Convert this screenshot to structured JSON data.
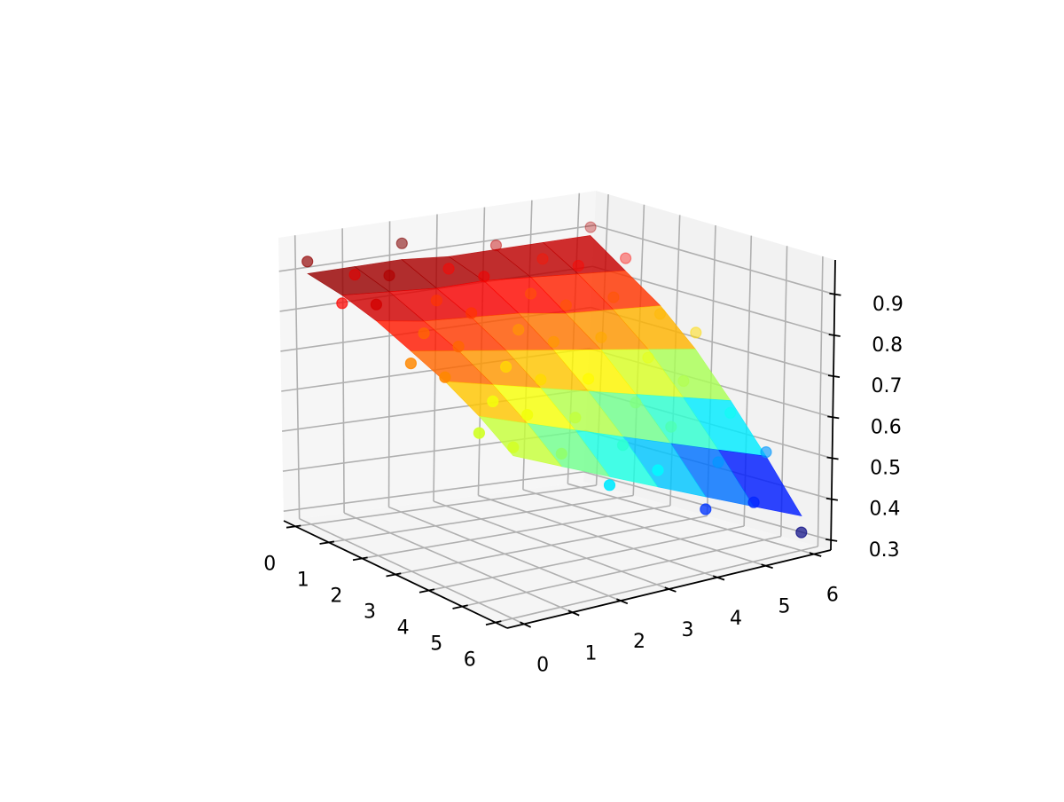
{
  "chart_data": {
    "type": "surface+scatter3d",
    "title": "",
    "xlabel": "",
    "ylabel": "",
    "zlabel": "",
    "colormap": "jet",
    "xlim": [
      -0.35,
      6.35
    ],
    "ylim": [
      -0.35,
      6.35
    ],
    "zlim": [
      0.276,
      0.984
    ],
    "grid": true,
    "x_ticks": [
      "0",
      "1",
      "2",
      "3",
      "4",
      "5",
      "6"
    ],
    "y_ticks": [
      "0",
      "1",
      "2",
      "3",
      "4",
      "5",
      "6"
    ],
    "z_ticks": [
      "0.3",
      "0.4",
      "0.5",
      "0.6",
      "0.7",
      "0.8",
      "0.9"
    ],
    "grid_x": [
      0,
      1,
      2,
      3,
      4,
      5,
      6
    ],
    "grid_y": [
      0,
      1,
      2,
      3,
      4,
      5,
      6
    ],
    "surface_z": [
      [
        0.9,
        0.9,
        0.9,
        0.89,
        0.89,
        0.89,
        0.89
      ],
      [
        0.88,
        0.87,
        0.86,
        0.86,
        0.85,
        0.84,
        0.83
      ],
      [
        0.85,
        0.83,
        0.82,
        0.81,
        0.79,
        0.78,
        0.77
      ],
      [
        0.81,
        0.79,
        0.77,
        0.75,
        0.73,
        0.71,
        0.69
      ],
      [
        0.77,
        0.74,
        0.71,
        0.68,
        0.65,
        0.62,
        0.59
      ],
      [
        0.72,
        0.68,
        0.64,
        0.6,
        0.56,
        0.52,
        0.48
      ],
      [
        0.66,
        0.61,
        0.56,
        0.51,
        0.46,
        0.41,
        0.36
      ]
    ],
    "scatter_z": [
      [
        0.93,
        0.88,
        0.94,
        0.86,
        0.9,
        0.85,
        0.91
      ],
      [
        0.86,
        0.91,
        0.83,
        0.87,
        0.81,
        0.86,
        0.86
      ],
      [
        0.89,
        0.8,
        0.83,
        0.77,
        0.81,
        0.81,
        0.75
      ],
      [
        0.78,
        0.8,
        0.73,
        0.77,
        0.76,
        0.69,
        0.73
      ],
      [
        0.78,
        0.7,
        0.73,
        0.71,
        0.63,
        0.66,
        0.56
      ],
      [
        0.68,
        0.7,
        0.67,
        0.58,
        0.6,
        0.49,
        0.49
      ],
      [
        0.68,
        0.64,
        0.54,
        0.55,
        0.43,
        0.42,
        0.32
      ]
    ],
    "colors": {
      "pane": "#f2f2f2",
      "grid": "#b0b0b0",
      "axis": "#000000"
    }
  }
}
